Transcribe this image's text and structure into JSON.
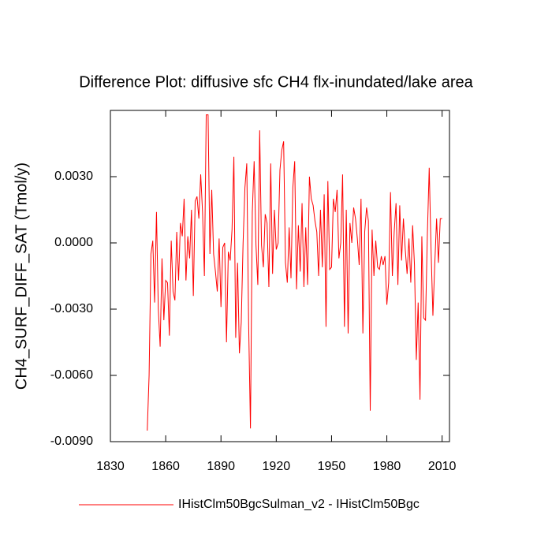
{
  "chart_data": {
    "type": "line",
    "title": "Difference Plot: diffusive sfc CH4 flx-inundated/lake area",
    "y_label": "CH4_SURF_DIFF_SAT  (Tmol/y)",
    "xlim": [
      1830,
      2014
    ],
    "xticks": [
      1830,
      1860,
      1890,
      1920,
      1950,
      1980,
      2010
    ],
    "ylim": [
      -0.009,
      0.006
    ],
    "yticks": [
      {
        "value": -0.009,
        "label": "-0.0090"
      },
      {
        "value": -0.006,
        "label": "-0.0060"
      },
      {
        "value": -0.003,
        "label": "-0.0030"
      },
      {
        "value": 0,
        "label": "0.0000"
      },
      {
        "value": 0.003,
        "label": "0.0030"
      }
    ],
    "x": [
      1850,
      1851,
      1852,
      1853,
      1854,
      1855,
      1856,
      1857,
      1858,
      1859,
      1860,
      1861,
      1862,
      1863,
      1864,
      1865,
      1866,
      1867,
      1868,
      1869,
      1870,
      1871,
      1872,
      1873,
      1874,
      1875,
      1876,
      1877,
      1878,
      1879,
      1880,
      1881,
      1882,
      1883,
      1884,
      1885,
      1886,
      1887,
      1888,
      1889,
      1890,
      1891,
      1892,
      1893,
      1894,
      1895,
      1896,
      1897,
      1898,
      1899,
      1900,
      1901,
      1902,
      1903,
      1904,
      1905,
      1906,
      1907,
      1908,
      1909,
      1910,
      1911,
      1912,
      1913,
      1914,
      1915,
      1916,
      1917,
      1918,
      1919,
      1920,
      1921,
      1922,
      1923,
      1924,
      1925,
      1926,
      1927,
      1928,
      1929,
      1930,
      1931,
      1932,
      1933,
      1934,
      1935,
      1936,
      1937,
      1938,
      1939,
      1940,
      1941,
      1942,
      1943,
      1944,
      1945,
      1946,
      1947,
      1948,
      1949,
      1950,
      1951,
      1952,
      1953,
      1954,
      1955,
      1956,
      1957,
      1958,
      1959,
      1960,
      1961,
      1962,
      1963,
      1964,
      1965,
      1966,
      1967,
      1968,
      1969,
      1970,
      1971,
      1972,
      1973,
      1974,
      1975,
      1976,
      1977,
      1978,
      1979,
      1980,
      1981,
      1982,
      1983,
      1984,
      1985,
      1986,
      1987,
      1988,
      1989,
      1990,
      1991,
      1992,
      1993,
      1994,
      1995,
      1996,
      1997,
      1998,
      1999,
      2000,
      2001,
      2002,
      2003,
      2004,
      2005,
      2006,
      2007,
      2008,
      2009,
      2010
    ],
    "series": [
      {
        "name": "IHistClm50BgcSulman_v2 - IHistClm50Bgc",
        "color": "#ff0000",
        "values": [
          -0.0085,
          -0.006,
          -0.0005,
          0.0001,
          -0.0027,
          0.0014,
          -0.003,
          -0.0047,
          -0.0007,
          -0.0035,
          -0.0017,
          -0.0018,
          -0.0042,
          0.0001,
          -0.0022,
          -0.0026,
          0.0005,
          -0.0017,
          0.0009,
          0.0003,
          0.002,
          -0.0017,
          0.0003,
          -0.0007,
          0.0015,
          -0.0024,
          0.0019,
          0.0021,
          0.0011,
          0.0031,
          0.0014,
          -0.0015,
          0.0058,
          0.0058,
          -0.0005,
          0.0024,
          -0.0005,
          -0.0013,
          -0.0022,
          0.0002,
          -0.0029,
          -0.0002,
          0,
          -0.0045,
          -0.0004,
          -0.0008,
          0.0006,
          0.0039,
          -0.0043,
          -0.0009,
          -0.005,
          -0.0036,
          0,
          0.0025,
          0.0036,
          -0.0036,
          -0.0084,
          0.0014,
          0.0037,
          -0.0001,
          -0.0019,
          0.0051,
          -0.0001,
          -0.0011,
          0.0013,
          0.0009,
          -0.002,
          0.0036,
          -0.0014,
          0.0015,
          -0.0003,
          0,
          0.0033,
          0.0042,
          0.0046,
          -0.0009,
          -0.0018,
          0.0007,
          -0.0016,
          0.0025,
          0.0037,
          -0.0021,
          0.0008,
          -0.0013,
          0.0018,
          -0.002,
          0.0007,
          -0.0019,
          0.003,
          0.002,
          0.0017,
          0.001,
          0.0005,
          -0.0015,
          0.0015,
          -0.0011,
          0.0022,
          -0.0038,
          0.0028,
          -0.0012,
          -0.0011,
          0.002,
          0.0014,
          0.0024,
          -0.0007,
          0,
          0.0031,
          -0.0038,
          0.0015,
          -0.0041,
          0.0009,
          0,
          0.0016,
          0.0011,
          0.0002,
          -0.001,
          0.002,
          -0.0041,
          0.0005,
          0.0016,
          0.001,
          -0.0076,
          0.0006,
          -0.0015,
          0.0001,
          -0.0011,
          -0.0012,
          -0.0006,
          -0.001,
          -0.0006,
          -0.0028,
          -0.0018,
          0.0023,
          -0.0015,
          0.0005,
          0.0018,
          -0.0019,
          0.0017,
          -0.0008,
          0.0011,
          -0.0003,
          -0.0014,
          0.0002,
          -0.0018,
          0.0008,
          -0.001,
          -0.0053,
          -0.0027,
          -0.0071,
          0.0003,
          -0.0034,
          -0.0035,
          0.0004,
          0.0034,
          -0.0003,
          -0.0033,
          -0.001,
          0.0011,
          -0.0009,
          0.0011,
          0.0011
        ]
      }
    ]
  }
}
